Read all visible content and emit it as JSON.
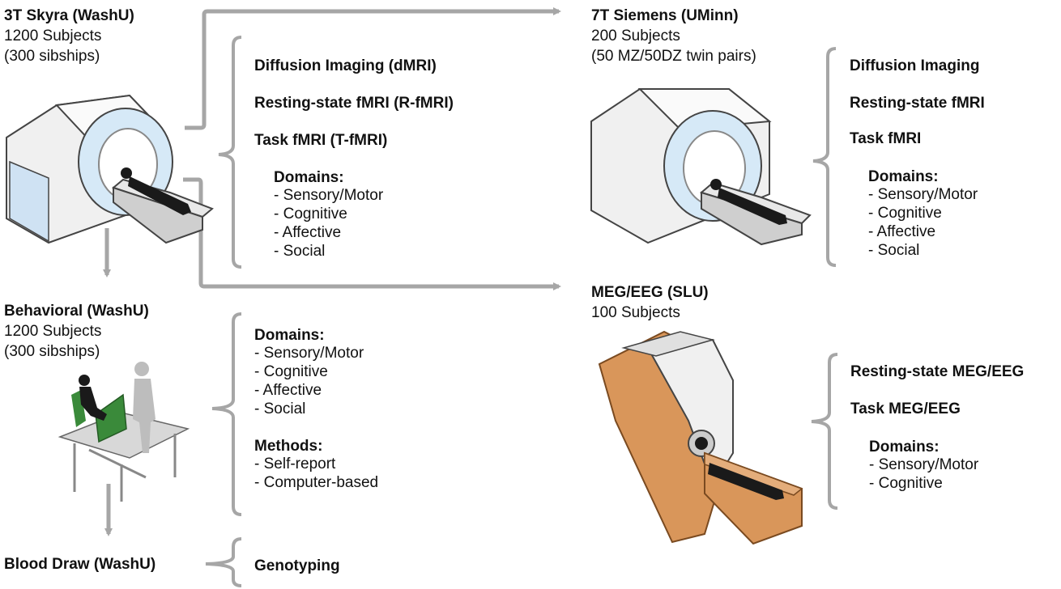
{
  "colors": {
    "connector": "#a6a6a6",
    "scanner_body": "#f2f2f2",
    "scanner_shadow": "#9a9a9a",
    "scanner_bore": "#d6e9f7",
    "meg_wood": "#d9965a",
    "meg_wood_dark": "#a86a34",
    "person": "#1a1a1a",
    "chair_green": "#3a8a3a"
  },
  "skyra": {
    "title": "3T Skyra (WashU)",
    "subjects": "1200 Subjects",
    "note": "(300 sibships)",
    "icon": "mri-scanner-icon"
  },
  "skyra_modalities": {
    "items": [
      "Diffusion Imaging (dMRI)",
      "Resting-state fMRI (R-fMRI)",
      "Task fMRI (T-fMRI)"
    ],
    "domains_label": "Domains:",
    "domains": [
      "- Sensory/Motor",
      "- Cognitive",
      "- Affective",
      "- Social"
    ]
  },
  "siemens": {
    "title": "7T Siemens (UMinn)",
    "subjects": "200 Subjects",
    "note": "(50 MZ/50DZ twin pairs)",
    "icon": "mri-scanner-icon"
  },
  "siemens_modalities": {
    "items": [
      "Diffusion Imaging",
      "Resting-state fMRI",
      "Task fMRI"
    ],
    "domains_label": "Domains:",
    "domains": [
      "- Sensory/Motor",
      "- Cognitive",
      "- Affective",
      "- Social"
    ]
  },
  "behavioral": {
    "title": "Behavioral (WashU)",
    "subjects": "1200 Subjects",
    "note": "(300 sibships)",
    "icon": "computer-testing-icon",
    "domains_label": "Domains:",
    "domains": [
      "- Sensory/Motor",
      "- Cognitive",
      "- Affective",
      "- Social"
    ],
    "methods_label": "Methods:",
    "methods": [
      "- Self-report",
      "- Computer-based"
    ]
  },
  "meg": {
    "title": "MEG/EEG (SLU)",
    "subjects": "100 Subjects",
    "icon": "meg-scanner-icon",
    "items": [
      "Resting-state MEG/EEG",
      "Task MEG/EEG"
    ],
    "domains_label": "Domains:",
    "domains": [
      "- Sensory/Motor",
      "- Cognitive"
    ]
  },
  "blood": {
    "title": "Blood Draw (WashU)",
    "result": "Genotyping"
  }
}
